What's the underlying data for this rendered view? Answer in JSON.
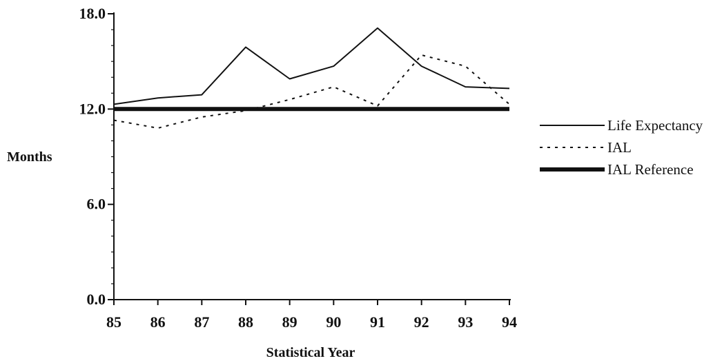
{
  "chart_data": {
    "type": "line",
    "title": "",
    "xlabel": "Statistical Year",
    "ylabel": "Months",
    "categories": [
      "85",
      "86",
      "87",
      "88",
      "89",
      "90",
      "91",
      "92",
      "93",
      "94"
    ],
    "ylim": [
      0,
      18
    ],
    "y_ticks": [
      "0.0",
      "6.0",
      "12.0",
      "18.0"
    ],
    "grid": false,
    "legend_position": "right",
    "series": [
      {
        "name": "Life Expectancy",
        "style": "solid",
        "color": "#111111",
        "values": [
          12.3,
          12.7,
          12.9,
          15.9,
          13.9,
          14.7,
          17.1,
          14.7,
          13.4,
          13.3
        ]
      },
      {
        "name": "IAL",
        "style": "dotted",
        "color": "#111111",
        "values": [
          11.3,
          10.8,
          11.5,
          11.9,
          12.6,
          13.4,
          12.2,
          15.4,
          14.7,
          12.3
        ]
      },
      {
        "name": "IAL Reference",
        "style": "thick",
        "color": "#111111",
        "values": [
          12.0,
          12.0,
          12.0,
          12.0,
          12.0,
          12.0,
          12.0,
          12.0,
          12.0,
          12.0
        ]
      }
    ]
  }
}
